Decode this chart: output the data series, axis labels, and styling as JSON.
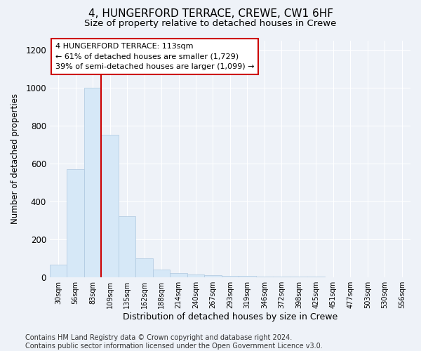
{
  "title1": "4, HUNGERFORD TERRACE, CREWE, CW1 6HF",
  "title2": "Size of property relative to detached houses in Crewe",
  "xlabel": "Distribution of detached houses by size in Crewe",
  "ylabel": "Number of detached properties",
  "categories": [
    "30sqm",
    "56sqm",
    "83sqm",
    "109sqm",
    "135sqm",
    "162sqm",
    "188sqm",
    "214sqm",
    "240sqm",
    "267sqm",
    "293sqm",
    "319sqm",
    "346sqm",
    "372sqm",
    "398sqm",
    "425sqm",
    "451sqm",
    "477sqm",
    "503sqm",
    "530sqm",
    "556sqm"
  ],
  "values": [
    65,
    570,
    1000,
    750,
    320,
    100,
    40,
    20,
    13,
    10,
    8,
    5,
    3,
    2,
    1,
    1,
    0,
    0,
    0,
    0,
    0
  ],
  "bar_color": "#d6e8f7",
  "bar_edge_color": "#aec8e0",
  "vline_color": "#cc0000",
  "vline_index": 3,
  "annotation_text": "4 HUNGERFORD TERRACE: 113sqm\n← 61% of detached houses are smaller (1,729)\n39% of semi-detached houses are larger (1,099) →",
  "annotation_box_edge": "#cc0000",
  "ylim": [
    0,
    1250
  ],
  "yticks": [
    0,
    200,
    400,
    600,
    800,
    1000,
    1200
  ],
  "footer": "Contains HM Land Registry data © Crown copyright and database right 2024.\nContains public sector information licensed under the Open Government Licence v3.0.",
  "bg_color": "#eef2f8",
  "plot_bg_color": "#eef2f8",
  "grid_color": "#ffffff",
  "title1_fontsize": 11,
  "title2_fontsize": 9.5,
  "annotation_fontsize": 8,
  "footer_fontsize": 7,
  "ylabel_fontsize": 8.5,
  "xlabel_fontsize": 9,
  "ytick_fontsize": 8.5,
  "xtick_fontsize": 7
}
